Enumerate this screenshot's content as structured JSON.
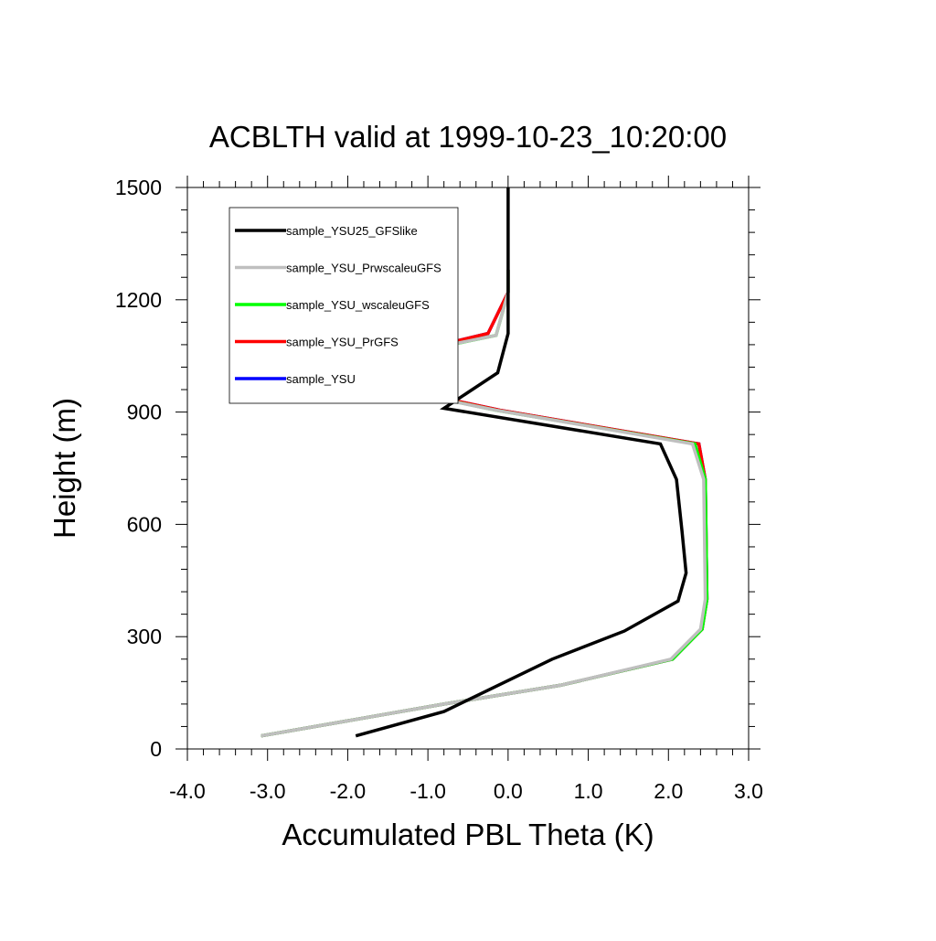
{
  "chart_data": {
    "type": "line",
    "title": "ACBLTH valid at 1999-10-23_10:20:00",
    "xlabel": "Accumulated PBL Theta (K)",
    "ylabel": "Height (m)",
    "xlim": [
      -4.0,
      3.0
    ],
    "ylim": [
      0,
      1500
    ],
    "x_ticks": [
      "-4.0",
      "-3.0",
      "-2.0",
      "-1.0",
      "0.0",
      "1.0",
      "2.0",
      "3.0"
    ],
    "y_ticks": [
      "0",
      "300",
      "600",
      "900",
      "1200",
      "1500"
    ],
    "x_tick_values": [
      -4.0,
      -3.0,
      -2.0,
      -1.0,
      0.0,
      1.0,
      2.0,
      3.0
    ],
    "y_tick_values": [
      0,
      300,
      600,
      900,
      1200,
      1500
    ],
    "grid": false,
    "legend_position": "top-left",
    "series": [
      {
        "name": "sample_YSU",
        "color": "#0000ff",
        "points": [
          [
            -3.08,
            35
          ],
          [
            -0.8,
            120
          ],
          [
            0.65,
            170
          ],
          [
            2.05,
            240
          ],
          [
            2.42,
            320
          ],
          [
            2.48,
            400
          ],
          [
            2.46,
            720
          ],
          [
            2.38,
            815
          ],
          [
            -0.1,
            905
          ],
          [
            -2.3,
            1005
          ],
          [
            -0.25,
            1110
          ],
          [
            0.0,
            1220
          ],
          [
            0.0,
            1280
          ]
        ]
      },
      {
        "name": "sample_YSU_PrGFS",
        "color": "#ff0000",
        "points": [
          [
            -3.08,
            35
          ],
          [
            -0.8,
            120
          ],
          [
            0.65,
            170
          ],
          [
            2.05,
            240
          ],
          [
            2.42,
            320
          ],
          [
            2.48,
            400
          ],
          [
            2.46,
            720
          ],
          [
            2.38,
            815
          ],
          [
            -0.1,
            905
          ],
          [
            -2.3,
            1005
          ],
          [
            -0.25,
            1110
          ],
          [
            0.0,
            1220
          ],
          [
            0.0,
            1280
          ]
        ]
      },
      {
        "name": "sample_YSU_wscaleuGFS",
        "color": "#00ff00",
        "points": [
          [
            -3.08,
            35
          ],
          [
            -0.8,
            120
          ],
          [
            0.65,
            170
          ],
          [
            2.05,
            240
          ],
          [
            2.42,
            320
          ],
          [
            2.48,
            400
          ],
          [
            2.46,
            720
          ],
          [
            2.33,
            815
          ],
          [
            -0.15,
            905
          ],
          [
            -2.4,
            1005
          ],
          [
            -0.15,
            1105
          ],
          [
            0.0,
            1220
          ],
          [
            0.0,
            1280
          ]
        ]
      },
      {
        "name": "sample_YSU_PrwscaleuGFS",
        "color": "#bfbfbf",
        "points": [
          [
            -3.08,
            35
          ],
          [
            -0.8,
            120
          ],
          [
            0.65,
            170
          ],
          [
            2.03,
            240
          ],
          [
            2.4,
            320
          ],
          [
            2.46,
            400
          ],
          [
            2.44,
            720
          ],
          [
            2.3,
            815
          ],
          [
            -0.15,
            905
          ],
          [
            -2.45,
            1005
          ],
          [
            -0.15,
            1105
          ],
          [
            0.0,
            1220
          ],
          [
            0.0,
            1280
          ]
        ]
      },
      {
        "name": "sample_YSU25_GFSlike",
        "color": "#000000",
        "points": [
          [
            -1.9,
            35
          ],
          [
            -0.8,
            100
          ],
          [
            0.55,
            240
          ],
          [
            1.45,
            315
          ],
          [
            2.12,
            395
          ],
          [
            2.22,
            470
          ],
          [
            2.17,
            580
          ],
          [
            2.1,
            720
          ],
          [
            1.9,
            815
          ],
          [
            -0.8,
            910
          ],
          [
            -0.13,
            1005
          ],
          [
            0.0,
            1110
          ],
          [
            0.0,
            1500
          ]
        ]
      }
    ]
  }
}
